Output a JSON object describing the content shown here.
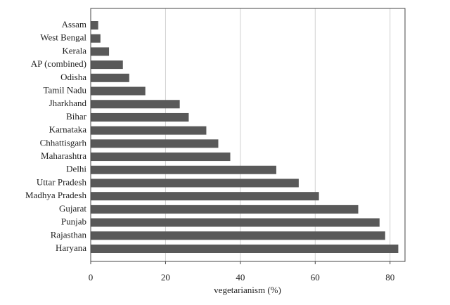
{
  "chart_data": {
    "type": "hbar",
    "xlabel": "vegetarianism (%)",
    "categories": [
      "Assam",
      "West Bengal",
      "Kerala",
      "AP (combined)",
      "Odisha",
      "Tamil Nadu",
      "Jharkhand",
      "Bihar",
      "Karnataka",
      "Chhattisgarh",
      "Maharashtra",
      "Delhi",
      "Uttar Pradesh",
      "Madhya Pradesh",
      "Gujarat",
      "Punjab",
      "Rajasthan",
      "Haryana"
    ],
    "values": [
      2,
      2.6,
      4.9,
      8.6,
      10.3,
      14.6,
      23.8,
      26.2,
      30.9,
      34.1,
      37.3,
      49.6,
      55.6,
      61,
      71.5,
      77.2,
      78.7,
      82.2
    ],
    "color": "#595959",
    "xlim": [
      0,
      84
    ],
    "xticks": [
      0,
      20,
      40,
      60,
      80
    ],
    "grid": true
  }
}
